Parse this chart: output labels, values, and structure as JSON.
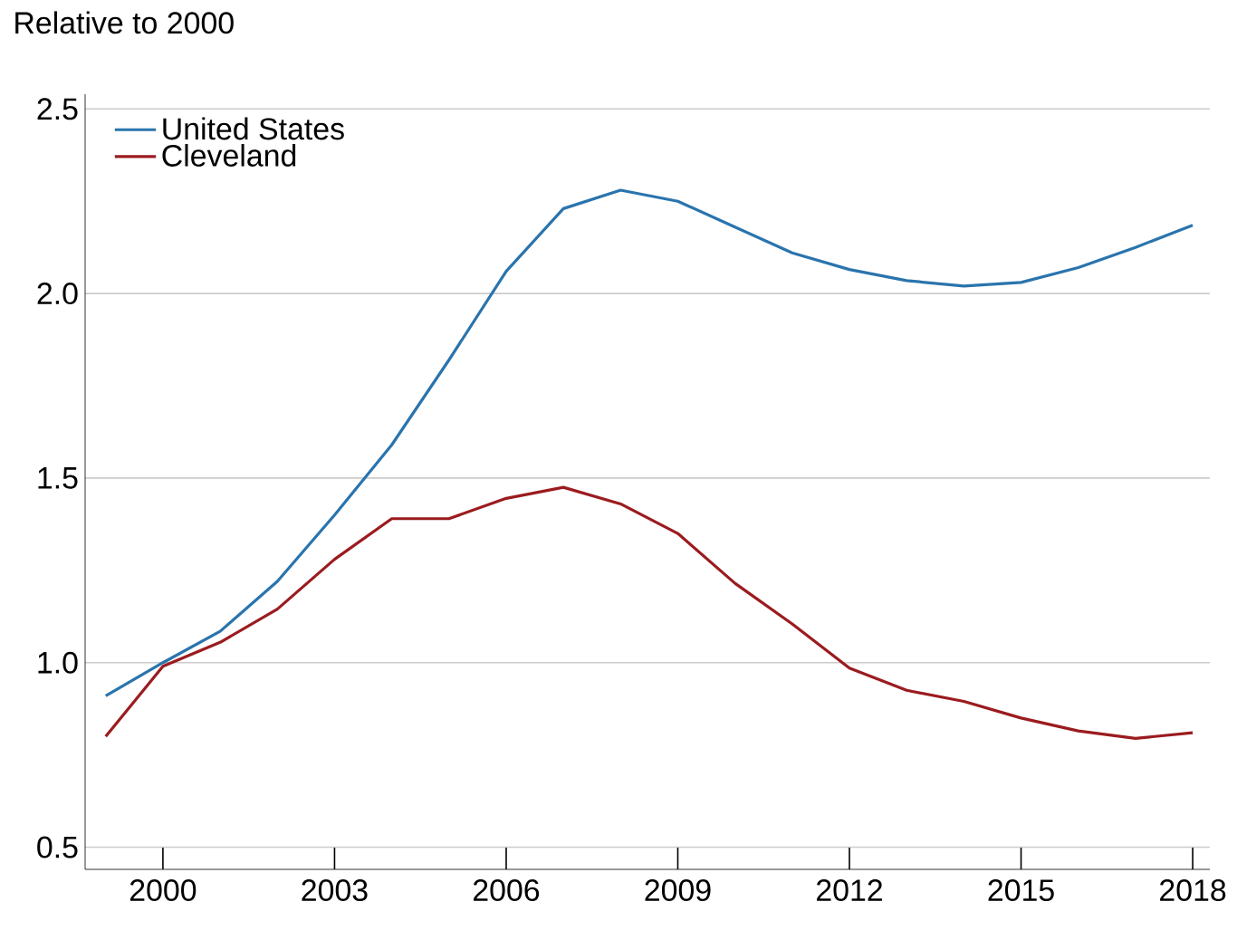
{
  "chart_data": {
    "type": "line",
    "ylabel": "Relative to 2000",
    "x": [
      1999,
      2000,
      2001,
      2002,
      2003,
      2004,
      2005,
      2006,
      2007,
      2008,
      2009,
      2010,
      2011,
      2012,
      2013,
      2014,
      2015,
      2016,
      2017,
      2018
    ],
    "series": [
      {
        "name": "United States",
        "color": "#2a74ad",
        "values": [
          0.91,
          1.0,
          1.085,
          1.22,
          1.4,
          1.59,
          1.82,
          2.06,
          2.23,
          2.28,
          2.25,
          2.18,
          2.11,
          2.065,
          2.035,
          2.02,
          2.03,
          2.07,
          2.125,
          2.185
        ]
      },
      {
        "name": "Cleveland",
        "color": "#9b1b1f",
        "values": [
          0.8,
          0.99,
          1.055,
          1.145,
          1.28,
          1.39,
          1.39,
          1.445,
          1.475,
          1.43,
          1.35,
          1.215,
          1.105,
          0.985,
          0.925,
          0.895,
          0.85,
          0.815,
          0.795,
          0.81
        ]
      }
    ],
    "xlim": [
      1998.64,
      2018.3
    ],
    "ylim": [
      0.44,
      2.54
    ],
    "xticks": [
      2000,
      2003,
      2006,
      2009,
      2012,
      2015,
      2018
    ],
    "yticks": [
      {
        "value": 0.5,
        "label": "0.5"
      },
      {
        "value": 1.0,
        "label": "1.0"
      },
      {
        "value": 1.5,
        "label": "1.5"
      },
      {
        "value": 2.0,
        "label": "2.0"
      },
      {
        "value": 2.5,
        "label": "2.5"
      }
    ],
    "grid": "y",
    "legend": "top left",
    "marker": "none",
    "line_style": "solid"
  }
}
